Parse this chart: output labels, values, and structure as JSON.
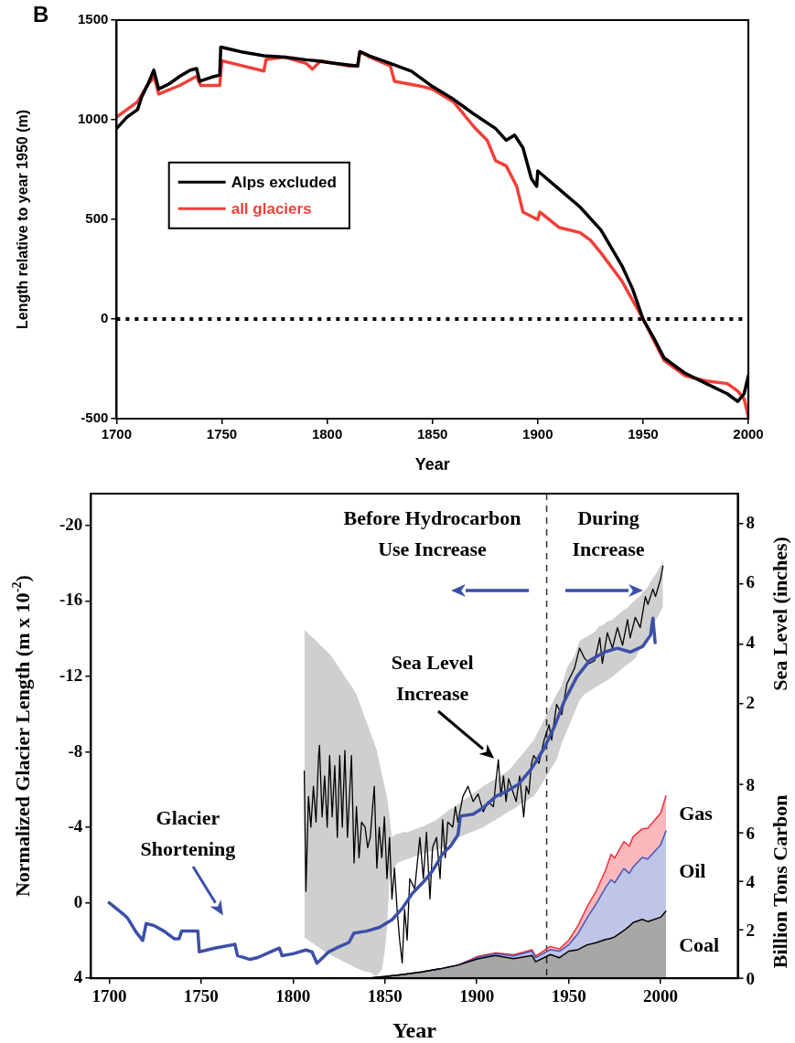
{
  "chart_data": [
    {
      "type": "line",
      "xlabel": "Year",
      "ylabel": "Length relative to year 1950 (m)",
      "xlim": [
        1700,
        2000
      ],
      "xticks": [
        1700,
        1750,
        1800,
        1850,
        1900,
        1950,
        2000
      ],
      "ylim": [
        -500,
        1500
      ],
      "yticks": [
        -500,
        0,
        500,
        1000,
        1500
      ],
      "legend": "left",
      "ref_lines": [
        {
          "axis": "y",
          "value": 0,
          "line_style": "dotted",
          "color": "#000000"
        }
      ],
      "annotations": [
        "B"
      ],
      "series": [
        {
          "name": "Alps excluded",
          "color": "#000000",
          "x": [
            1700,
            1705,
            1710,
            1712,
            1715,
            1717.7,
            1720,
            1725,
            1730,
            1735,
            1738,
            1739.5,
            1745,
            1749,
            1749.5,
            1760,
            1770,
            1780,
            1790,
            1795,
            1800,
            1814.5,
            1815.5,
            1820,
            1830,
            1840,
            1850,
            1860,
            1870,
            1880,
            1885,
            1889,
            1893,
            1897,
            1899.5,
            1900,
            1910,
            1920,
            1930,
            1940,
            1945,
            1950,
            1955,
            1960,
            1970,
            1980,
            1990,
            1995,
            1998,
            2000
          ],
          "values": [
            956,
            1013,
            1051,
            1116,
            1180,
            1249,
            1154,
            1180,
            1218,
            1249,
            1257,
            1193,
            1213,
            1224,
            1365,
            1339,
            1321,
            1314,
            1301,
            1296,
            1288,
            1270,
            1342,
            1321,
            1283,
            1244,
            1167,
            1103,
            1026,
            956,
            897,
            923,
            859,
            704,
            666,
            743,
            653,
            563,
            447,
            267,
            152,
            0,
            -93,
            -195,
            -272,
            -324,
            -375,
            -414,
            -375,
            -285
          ]
        },
        {
          "name": "all glaciers",
          "color": "#f0403a",
          "x": [
            1700,
            1710,
            1715,
            1718,
            1720,
            1730,
            1738,
            1740,
            1749,
            1750,
            1760,
            1770,
            1771,
            1780,
            1790,
            1793,
            1797,
            1810,
            1814.5,
            1815.5,
            1820,
            1830,
            1832,
            1845,
            1850,
            1860,
            1870,
            1876,
            1880,
            1885,
            1890,
            1893,
            1900,
            1901,
            1910,
            1920,
            1925,
            1930,
            1940,
            1950,
            1960,
            1970,
            1980,
            1990,
            1995,
            1998,
            2000
          ],
          "values": [
            1013,
            1090,
            1180,
            1213,
            1129,
            1172,
            1218,
            1172,
            1172,
            1296,
            1270,
            1244,
            1303,
            1314,
            1283,
            1254,
            1296,
            1270,
            1270,
            1342,
            1316,
            1270,
            1193,
            1167,
            1154,
            1090,
            961,
            897,
            794,
            769,
            666,
            537,
            499,
            537,
            460,
            434,
            396,
            332,
            190,
            0,
            -208,
            -285,
            -311,
            -324,
            -362,
            -401,
            -491
          ]
        }
      ]
    },
    {
      "type": "line",
      "xlabel": "Year",
      "ylabel": "Normalized Glacier Length (m x 10$^{-2}$)",
      "y2label": "Sea Level (inches)",
      "y3label": "Billion Tons Carbon",
      "xlim": [
        1690,
        2042
      ],
      "xticks": [
        1700,
        1750,
        1800,
        1850,
        1900,
        1950,
        2000
      ],
      "ylim": [
        4,
        -21.7
      ],
      "yticks": [
        -20,
        -16,
        -12,
        -8,
        -4,
        0,
        4
      ],
      "y2lim": [
        -7.11,
        8.99
      ],
      "y2ticks": [
        2,
        4,
        6,
        8
      ],
      "y3lim": [
        0,
        20
      ],
      "y3ticks": [
        0,
        2,
        4,
        6,
        8
      ],
      "stacked": true,
      "ref_lines": [
        {
          "axis": "x",
          "value": 1938,
          "line_style": "dashed",
          "color": "#333333"
        }
      ],
      "annotations": [
        "Before Hydrocarbon\nUse Increase",
        "During\nIncrease",
        "Sea Level\nIncrease",
        "Glacier\nShortening"
      ],
      "series": [
        {
          "color": "#3c4fa8",
          "x": [
            1700,
            1707.7,
            1709.9,
            1714.6,
            1718.2,
            1720.1,
            1724.3,
            1729.8,
            1735.3,
            1738,
            1739.4,
            1745,
            1748.2,
            1749,
            1757.3,
            1768.4,
            1769.8,
            1776.6,
            1780.8,
            1787.7,
            1792.6,
            1794,
            1800,
            1807,
            1810.3,
            1813,
            1815.2,
            1819.4,
            1823.5,
            1830.4,
            1833.2,
            1840,
            1847,
            1853.8,
            1859.4,
            1864.9,
            1871.8,
            1875.9,
            1881.4,
            1885.6,
            1889.7,
            1891.1,
            1898,
            1903.5,
            1910.4,
            1915.9,
            1922.8,
            1929.7,
            1936.6,
            1942,
            1947.6,
            1954.5,
            1961.4,
            1969.6,
            1976.5,
            1983.4,
            1990.3,
            1994.5,
            1995.8,
            1997
          ],
          "values": [
            0,
            0.6,
            0.8,
            1.55,
            2,
            1.1,
            1.2,
            1.5,
            1.9,
            1.9,
            1.5,
            1.5,
            1.5,
            2.6,
            2.4,
            2.2,
            2.8,
            3,
            2.9,
            2.6,
            2.4,
            2.8,
            2.7,
            2.5,
            2.6,
            3.2,
            3,
            2.6,
            2.4,
            2.1,
            1.6,
            1.5,
            1.3,
            0.9,
            0.3,
            -0.5,
            -1.2,
            -1.7,
            -2.6,
            -3,
            -3.6,
            -4.6,
            -4.7,
            -5.05,
            -5.65,
            -5.9,
            -6.3,
            -7.1,
            -8.2,
            -9.3,
            -10.7,
            -12,
            -12.85,
            -13.3,
            -13.5,
            -13.3,
            -13.6,
            -14.2,
            -15.1,
            -13.8
          ]
        },
        {
          "color": "#000000",
          "axis": "y2",
          "x": [
            1806.1,
            1807,
            1808.4,
            1809.7,
            1811.1,
            1812.5,
            1813.9,
            1814.4,
            1815.8,
            1817.2,
            1818.6,
            1819.9,
            1821.3,
            1822.7,
            1824.1,
            1825.4,
            1826.8,
            1828.2,
            1829.6,
            1831.8,
            1833.2,
            1834.5,
            1835.9,
            1837.3,
            1839.2,
            1840.6,
            1842,
            1844.2,
            1845.6,
            1846.9,
            1848.3,
            1849.7,
            1851.1,
            1852.5,
            1853.8,
            1855.2,
            1856.6,
            1858,
            1859.4,
            1860.7,
            1862.1,
            1863.5,
            1866.2,
            1869,
            1870.9,
            1872.6,
            1874.5,
            1875.9,
            1878.1,
            1880,
            1881.4,
            1882.8,
            1884.2,
            1886.9,
            1888.3,
            1889.7,
            1892.4,
            1895.2,
            1898,
            1900.7,
            1903.5,
            1906.2,
            1909,
            1910.4,
            1911.7,
            1913.1,
            1914.5,
            1915.9,
            1917.3,
            1918.6,
            1921.4,
            1923.3,
            1925.5,
            1926.9,
            1928.3,
            1929.7,
            1931,
            1933.8,
            1936.6,
            1939.3,
            1940.7,
            1943.4,
            1946.2,
            1949,
            1953.1,
            1955.9,
            1958.6,
            1961.4,
            1964.1,
            1966.9,
            1968.3,
            1971,
            1973.8,
            1976.5,
            1979.3,
            1982,
            1983.4,
            1986.2,
            1988.9,
            1991.7,
            1993.1,
            1995.8,
            1997.2,
            2000,
            2001.3
          ],
          "values": [
            -0.22,
            -4.22,
            -1.07,
            -2.09,
            -0.73,
            -1.92,
            0.29,
            0.63,
            -1.75,
            -0.39,
            -2.09,
            0.29,
            -1.75,
            -0.05,
            -2.43,
            0.29,
            -2.09,
            0.46,
            -2.43,
            0.29,
            -3.28,
            -1.41,
            -3.11,
            -1.92,
            -2.09,
            -2.77,
            -2.43,
            -0.73,
            -3.45,
            -2.09,
            -3.11,
            -1.75,
            -3.8,
            -2.43,
            -4.48,
            -3.45,
            -4.82,
            -5.84,
            -6.6,
            -4.82,
            -5.84,
            -3.8,
            -4.14,
            -2.43,
            -3.8,
            -2.26,
            -4.48,
            -2.77,
            -2.43,
            -3.8,
            -1.84,
            -3.11,
            -1.92,
            -2.09,
            -1.41,
            -1.92,
            -1.07,
            -0.73,
            -1.24,
            -0.99,
            -1.58,
            -1.24,
            -1.41,
            -0.56,
            0.15,
            -1.07,
            -0.39,
            -1.24,
            -0.48,
            -0.73,
            -1.24,
            -0.39,
            -1.75,
            -0.73,
            -0.99,
            0.03,
            0.29,
            0.03,
            0.8,
            1.31,
            0.8,
            1.99,
            1.65,
            2.67,
            3.18,
            3.86,
            3.52,
            3.35,
            3.44,
            4.2,
            3.35,
            4.37,
            3.86,
            4.54,
            3.95,
            4.8,
            4.2,
            4.88,
            4.54,
            5.57,
            5.31,
            5.82,
            5.57,
            6.16,
            6.59
          ],
          "upper": [
            4.46,
            4.43,
            4.34,
            4.26,
            4.19,
            4.1,
            4.02,
            3.98,
            3.9,
            3.83,
            3.74,
            3.66,
            3.56,
            3.42,
            3.3,
            3.17,
            3.05,
            2.91,
            2.79,
            2.59,
            2.45,
            2.33,
            2.09,
            1.86,
            1.53,
            1.31,
            1.07,
            0.7,
            0.46,
            0.07,
            -0.31,
            -0.7,
            -1.07,
            -1.75,
            -2.43,
            -2.35,
            -2.31,
            -2.3,
            -2.26,
            -2.25,
            -2.26,
            -2.23,
            -2.16,
            -2.09,
            -2.06,
            -2.01,
            -1.96,
            -1.92,
            -1.84,
            -1.75,
            -1.68,
            -1.62,
            -1.55,
            -1.45,
            -1.4,
            -1.33,
            -1.21,
            -1.09,
            -0.97,
            -0.85,
            -0.73,
            -0.63,
            -0.53,
            -0.48,
            -0.43,
            -0.37,
            -0.32,
            -0.27,
            -0.22,
            -0.12,
            0.09,
            0.22,
            0.39,
            0.49,
            0.6,
            0.7,
            0.8,
            1.14,
            1.48,
            1.82,
            1.99,
            2.33,
            2.62,
            3.2,
            3.6,
            4.1,
            4.2,
            4.3,
            4.4,
            4.6,
            4.6,
            4.75,
            4.8,
            4.95,
            5.1,
            5.2,
            5.3,
            5.45,
            5.6,
            5.8,
            5.9,
            6.2,
            6.3,
            6.6,
            6.75
          ],
          "lower": [
            -5.75,
            -5.79,
            -5.84,
            -5.91,
            -5.96,
            -6.03,
            -6.08,
            -6.11,
            -6.16,
            -6.23,
            -6.28,
            -6.31,
            -6.37,
            -6.4,
            -6.45,
            -6.48,
            -6.54,
            -6.57,
            -6.62,
            -6.69,
            -6.74,
            -6.77,
            -6.81,
            -6.84,
            -6.88,
            -6.89,
            -6.91,
            -7.01,
            -7.03,
            -6.93,
            -6.84,
            -6.3,
            -5.5,
            -3.8,
            -3.63,
            -3.45,
            -3.28,
            -3.25,
            -3.22,
            -3.18,
            -3.15,
            -3.13,
            -3.06,
            -3.01,
            -2.96,
            -2.93,
            -2.89,
            -2.88,
            -2.84,
            -2.81,
            -2.77,
            -2.72,
            -2.66,
            -2.55,
            -2.48,
            -2.43,
            -2.37,
            -2.3,
            -2.23,
            -2.16,
            -2.09,
            -1.99,
            -1.89,
            -1.84,
            -1.79,
            -1.74,
            -1.68,
            -1.63,
            -1.58,
            -1.53,
            -1.43,
            -1.34,
            -1.26,
            -1.21,
            -1.16,
            -1.11,
            -1.07,
            -0.8,
            -0.53,
            -0.26,
            -0.12,
            0.15,
            0.7,
            1.11,
            1.72,
            2.13,
            2.33,
            2.43,
            2.54,
            2.64,
            2.69,
            2.79,
            2.91,
            3.05,
            3.18,
            3.32,
            3.39,
            3.52,
            3.83,
            4.14,
            4.29,
            4.61,
            4.77,
            5.07,
            5.23
          ]
        },
        {
          "name": "Coal",
          "type": "area",
          "axis": "y3",
          "color": "#000000",
          "x": [
            1840,
            1850,
            1860,
            1870,
            1880,
            1890,
            1900,
            1910,
            1920,
            1930,
            1932,
            1940,
            1945,
            1950,
            1955,
            1960,
            1965,
            1970,
            1973,
            1975,
            1980,
            1983,
            1985,
            1990,
            1993,
            2000,
            2003
          ],
          "values": [
            0,
            0.07,
            0.16,
            0.26,
            0.39,
            0.55,
            0.79,
            0.94,
            0.81,
            0.94,
            0.68,
            0.98,
            0.85,
            1.12,
            1.18,
            1.38,
            1.47,
            1.6,
            1.65,
            1.71,
            1.97,
            2.15,
            2.3,
            2.43,
            2.34,
            2.52,
            2.78
          ]
        },
        {
          "name": "Oil",
          "type": "area",
          "axis": "y3",
          "color": "#4656b8",
          "x": [
            1840,
            1850,
            1860,
            1870,
            1880,
            1890,
            1900,
            1910,
            1920,
            1930,
            1932,
            1940,
            1945,
            1950,
            1955,
            1960,
            1965,
            1970,
            1973,
            1975,
            1980,
            1983,
            1985,
            1990,
            1993,
            2000,
            2003
          ],
          "values": [
            0,
            0,
            0,
            0,
            0,
            0,
            0.06,
            0.08,
            0.11,
            0.18,
            0.17,
            0.2,
            0.27,
            0.26,
            0.66,
            1.11,
            1.61,
            2.14,
            2.42,
            2.23,
            2.56,
            2.18,
            2.29,
            2.56,
            2.58,
            2.99,
            3.32
          ]
        },
        {
          "name": "Gas",
          "type": "area",
          "axis": "y3",
          "color": "#f0323c",
          "x": [
            1840,
            1850,
            1860,
            1870,
            1880,
            1890,
            1900,
            1910,
            1920,
            1930,
            1932,
            1940,
            1945,
            1950,
            1955,
            1960,
            1965,
            1970,
            1973,
            1975,
            1980,
            1983,
            1985,
            1990,
            1993,
            2000,
            2003
          ],
          "values": [
            0,
            0,
            0,
            0,
            0,
            0,
            0.04,
            0.03,
            0.05,
            0.06,
            0.07,
            0.13,
            0.09,
            0.19,
            0.33,
            0.46,
            0.53,
            0.72,
            1.05,
            1.02,
            1.11,
            1.12,
            1.25,
            1.18,
            1.27,
            1.31,
            1.45
          ]
        }
      ]
    }
  ]
}
